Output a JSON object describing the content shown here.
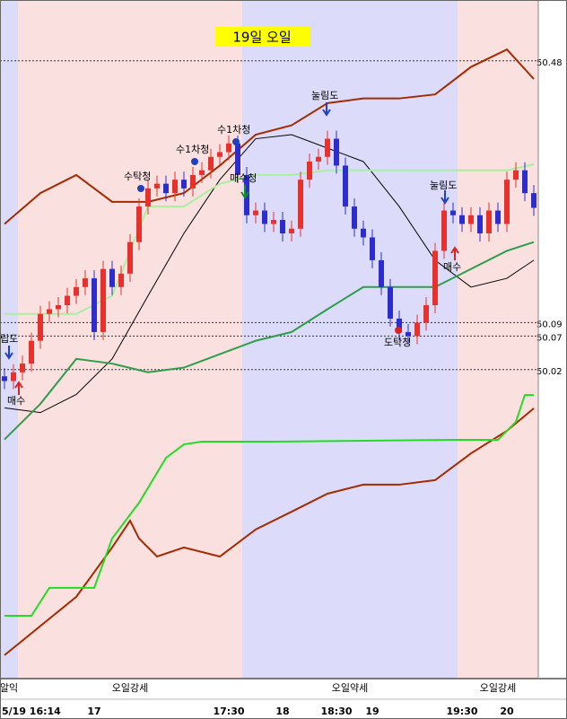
{
  "chart_data": [
    {
      "type": "candlestick",
      "title": "19일 오일",
      "categories": [
        "5/19 16:14",
        null,
        null,
        null,
        null,
        null,
        null,
        null,
        null,
        null,
        "17",
        null,
        null,
        null,
        null,
        null,
        null,
        null,
        null,
        null,
        null,
        null,
        null,
        null,
        null,
        "17:30",
        null,
        null,
        null,
        null,
        null,
        "18",
        null,
        null,
        null,
        null,
        null,
        "18:30",
        null,
        null,
        null,
        "19",
        null,
        null,
        null,
        null,
        null,
        null,
        null,
        null,
        null,
        "19:30",
        null,
        null,
        null,
        null,
        "20",
        null,
        null,
        null
      ],
      "open": [
        50.01,
        50.003,
        50.016,
        50.029,
        50.063,
        50.103,
        50.11,
        50.116,
        50.13,
        50.143,
        50.156,
        50.076,
        50.17,
        50.143,
        50.163,
        50.21,
        50.263,
        50.29,
        50.297,
        50.283,
        50.303,
        50.29,
        50.31,
        50.317,
        50.337,
        50.344,
        50.357,
        50.31,
        50.25,
        50.257,
        50.237,
        50.243,
        50.223,
        50.23,
        50.303,
        50.33,
        50.337,
        50.364,
        50.324,
        50.263,
        50.23,
        50.217,
        50.183,
        50.143,
        50.096,
        50.076,
        50.07,
        50.09,
        50.116,
        50.197,
        50.257,
        50.25,
        50.237,
        50.25,
        50.223,
        50.257,
        50.237,
        50.303,
        50.317,
        50.283
      ],
      "high": [
        50.022,
        50.028,
        50.041,
        50.075,
        50.115,
        50.122,
        50.128,
        50.142,
        50.155,
        50.168,
        50.168,
        50.182,
        50.182,
        50.175,
        50.222,
        50.275,
        50.302,
        50.309,
        50.309,
        50.315,
        50.315,
        50.322,
        50.329,
        50.349,
        50.356,
        50.369,
        50.369,
        50.322,
        50.269,
        50.269,
        50.255,
        50.255,
        50.242,
        50.315,
        50.342,
        50.349,
        50.376,
        50.376,
        50.336,
        50.275,
        50.242,
        50.229,
        50.195,
        50.155,
        50.108,
        50.088,
        50.102,
        50.128,
        50.209,
        50.269,
        50.269,
        50.262,
        50.262,
        50.262,
        50.269,
        50.269,
        50.315,
        50.329,
        50.329,
        50.295
      ],
      "low": [
        49.991,
        49.991,
        50.004,
        50.017,
        50.051,
        50.091,
        50.098,
        50.104,
        50.118,
        50.131,
        50.064,
        50.064,
        50.131,
        50.131,
        50.151,
        50.198,
        50.251,
        50.278,
        50.271,
        50.271,
        50.278,
        50.278,
        50.298,
        50.305,
        50.325,
        50.332,
        50.298,
        50.238,
        50.238,
        50.225,
        50.225,
        50.211,
        50.211,
        50.218,
        50.291,
        50.318,
        50.325,
        50.312,
        50.251,
        50.218,
        50.205,
        50.171,
        50.131,
        50.084,
        50.064,
        50.058,
        50.058,
        50.078,
        50.104,
        50.185,
        50.238,
        50.225,
        50.225,
        50.211,
        50.211,
        50.225,
        50.225,
        50.291,
        50.271,
        50.249
      ],
      "close": [
        50.003,
        50.016,
        50.029,
        50.063,
        50.103,
        50.11,
        50.116,
        50.13,
        50.143,
        50.156,
        50.076,
        50.17,
        50.143,
        50.163,
        50.21,
        50.263,
        50.29,
        50.297,
        50.283,
        50.303,
        50.29,
        50.31,
        50.317,
        50.337,
        50.344,
        50.357,
        50.31,
        50.25,
        50.257,
        50.237,
        50.243,
        50.223,
        50.23,
        50.303,
        50.33,
        50.337,
        50.364,
        50.324,
        50.263,
        50.23,
        50.217,
        50.183,
        50.143,
        50.096,
        50.076,
        50.07,
        50.09,
        50.116,
        50.197,
        50.257,
        50.25,
        50.237,
        50.25,
        50.223,
        50.257,
        50.237,
        50.303,
        50.317,
        50.283,
        50.261
      ],
      "up_color": "#e8302c",
      "down_color": "#2c2ccf",
      "ylim": [
        49.561,
        50.564
      ],
      "hlines": [
        50.48,
        50.09,
        50.07,
        50.02
      ],
      "zones": [
        {
          "label": "알익",
          "start": 0,
          "end": 1,
          "color": "#dcdcfa"
        },
        {
          "label": "오일강세",
          "start": 2,
          "end": 26,
          "color": "#fbe0e0"
        },
        {
          "label": "오일약세",
          "start": 27,
          "end": 50,
          "color": "#dcdcfa"
        },
        {
          "label": "오일강세",
          "start": 51,
          "end": 59,
          "color": "#fbe0e0"
        }
      ],
      "overlays": [
        {
          "color": "#a52a00",
          "x": [
            0,
            4,
            8,
            12,
            16,
            20,
            24,
            28,
            32,
            36,
            40,
            44,
            48,
            52,
            56,
            59
          ],
          "values": [
            50.237,
            50.283,
            50.31,
            50.27,
            50.27,
            50.283,
            50.324,
            50.37,
            50.384,
            50.417,
            50.424,
            50.424,
            50.43,
            50.471,
            50.497,
            50.453
          ]
        },
        {
          "color": "#000000",
          "x": [
            0,
            4,
            8,
            12,
            16,
            20,
            24,
            28,
            32,
            36,
            40,
            44,
            48,
            52,
            56,
            59
          ],
          "values": [
            49.963,
            49.956,
            49.983,
            50.036,
            50.13,
            50.223,
            50.303,
            50.364,
            50.37,
            50.35,
            50.33,
            50.263,
            50.183,
            50.143,
            50.156,
            50.183
          ]
        },
        {
          "color": "#2e9e4a",
          "x": [
            0,
            4,
            8,
            12,
            16,
            20,
            24,
            28,
            32,
            36,
            40,
            44,
            48,
            52,
            56,
            59
          ],
          "values": [
            49.916,
            49.969,
            50.036,
            50.029,
            50.016,
            50.023,
            50.043,
            50.063,
            50.076,
            50.11,
            50.143,
            50.143,
            50.143,
            50.17,
            50.197,
            50.21
          ]
        },
        {
          "color": "#a8f0a0",
          "x": [
            0,
            4,
            8,
            12,
            16,
            20,
            24,
            28,
            32,
            36,
            40,
            44,
            48,
            52,
            56,
            59
          ],
          "values": [
            50.103,
            50.103,
            50.103,
            50.13,
            50.263,
            50.263,
            50.297,
            50.31,
            50.31,
            50.317,
            50.317,
            50.317,
            50.317,
            50.317,
            50.317,
            50.326
          ]
        }
      ],
      "annotations": [
        "립도",
        "매수",
        "수탁청",
        "수1차청",
        "수1차청",
        "매수청",
        "눌림도",
        "도탁청",
        "눌림도",
        "매수"
      ]
    },
    {
      "type": "line",
      "ylim": [
        0,
        100
      ],
      "series": [
        {
          "color": "#a52a00",
          "x": [
            0,
            8,
            12,
            14,
            15,
            17,
            20,
            24,
            28,
            32,
            36,
            40,
            44,
            48,
            52,
            56,
            59
          ],
          "values": [
            7.5,
            26.9,
            43.3,
            52.2,
            46.3,
            40.3,
            43.3,
            40.3,
            49.3,
            55.2,
            61.2,
            64.2,
            64.2,
            65.7,
            74.6,
            82.1,
            89.6
          ]
        },
        {
          "color": "#22dd22",
          "x": [
            0,
            3,
            5,
            10,
            12,
            15,
            18,
            20,
            22,
            30,
            50,
            55,
            57,
            58,
            59
          ],
          "values": [
            20.6,
            20.6,
            29.9,
            29.9,
            46.3,
            58.2,
            73.1,
            77.6,
            78.5,
            78.5,
            79.1,
            79.1,
            85.1,
            94.0,
            94.0
          ]
        }
      ]
    }
  ]
}
